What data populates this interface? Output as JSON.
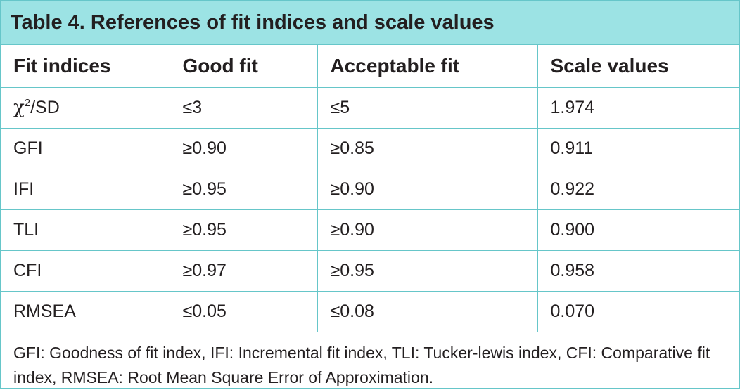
{
  "title": "Table 4. References of fit indices and scale values",
  "columns": [
    "Fit indices",
    "Good fit",
    "Acceptable fit",
    "Scale values"
  ],
  "rows": [
    {
      "index_symbol": "χ",
      "index_sup": "2",
      "index_suffix": "/SD",
      "good": "≤3",
      "acceptable": "≤5",
      "scale": "1.974"
    },
    {
      "index": "GFI",
      "good": "≥0.90",
      "acceptable": "≥0.85",
      "scale": "0.911"
    },
    {
      "index": "IFI",
      "good": "≥0.95",
      "acceptable": "≥0.90",
      "scale": "0.922"
    },
    {
      "index": "TLI",
      "good": "≥0.95",
      "acceptable": "≥0.90",
      "scale": "0.900"
    },
    {
      "index": "CFI",
      "good": "≥0.97",
      "acceptable": "≥0.95",
      "scale": "0.958"
    },
    {
      "index": "RMSEA",
      "good": "≤0.05",
      "acceptable": "≤0.08",
      "scale": "0.070"
    }
  ],
  "footnote": "GFI: Goodness of fit index, IFI: Incremental fit index, TLI: Tucker-lewis index, CFI: Comparative fit index, RMSEA: Root Mean Square Error of Approximation.",
  "colors": {
    "header_bg": "#9ce3e4",
    "border": "#66c6c9",
    "text": "#231f20"
  }
}
